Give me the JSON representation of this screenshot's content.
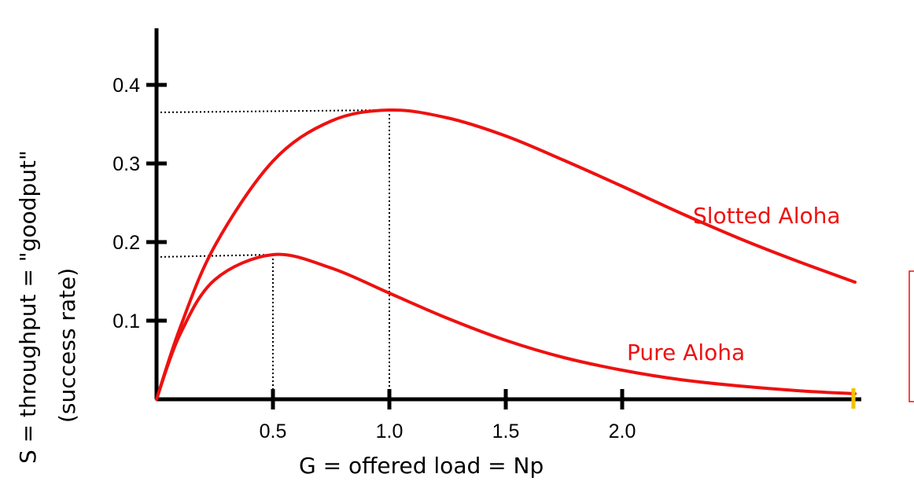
{
  "chart_data": {
    "type": "line",
    "xlabel": "G = offered load = Np",
    "ylabel_line1": "S = throughput = \"goodput\"",
    "ylabel_line2": "(success rate)",
    "x_ticks": [
      {
        "value": 0.5,
        "label": "0.5"
      },
      {
        "value": 1.0,
        "label": "1.0"
      },
      {
        "value": 1.5,
        "label": "1.5"
      },
      {
        "value": 2.0,
        "label": "2.0"
      }
    ],
    "y_ticks": [
      {
        "value": 0.1,
        "label": "0.1"
      },
      {
        "value": 0.2,
        "label": "0.2"
      },
      {
        "value": 0.3,
        "label": "0.3"
      },
      {
        "value": 0.4,
        "label": "0.4"
      }
    ],
    "xlim": [
      0,
      3.0
    ],
    "ylim": [
      0,
      0.5
    ],
    "series": [
      {
        "name": "Slotted Aloha",
        "formula": "G*exp(-G)",
        "color": "#ee1111",
        "x": [
          0,
          0.1,
          0.25,
          0.5,
          0.75,
          1.0,
          1.25,
          1.5,
          1.75,
          2.0,
          2.25,
          2.5,
          2.75,
          3.0
        ],
        "y": [
          0,
          0.09,
          0.195,
          0.303,
          0.354,
          0.368,
          0.358,
          0.335,
          0.304,
          0.271,
          0.237,
          0.205,
          0.176,
          0.149
        ]
      },
      {
        "name": "Pure Aloha",
        "formula": "G*exp(-2G)",
        "color": "#ee1111",
        "x": [
          0,
          0.1,
          0.25,
          0.5,
          0.75,
          1.0,
          1.25,
          1.5,
          1.75,
          2.0,
          2.25,
          2.5,
          2.75,
          3.0
        ],
        "y": [
          0,
          0.082,
          0.152,
          0.184,
          0.167,
          0.135,
          0.103,
          0.075,
          0.053,
          0.037,
          0.025,
          0.017,
          0.011,
          0.007
        ]
      }
    ],
    "reference_lines": [
      {
        "x": 0.5,
        "y": 0.184
      },
      {
        "x": 1.0,
        "y": 0.368
      }
    ],
    "grid": false,
    "legend": "none"
  },
  "colors": {
    "curve": "#ee1111",
    "axis": "#000000",
    "marker": "#f2c200",
    "note_box": "#ee1111"
  }
}
